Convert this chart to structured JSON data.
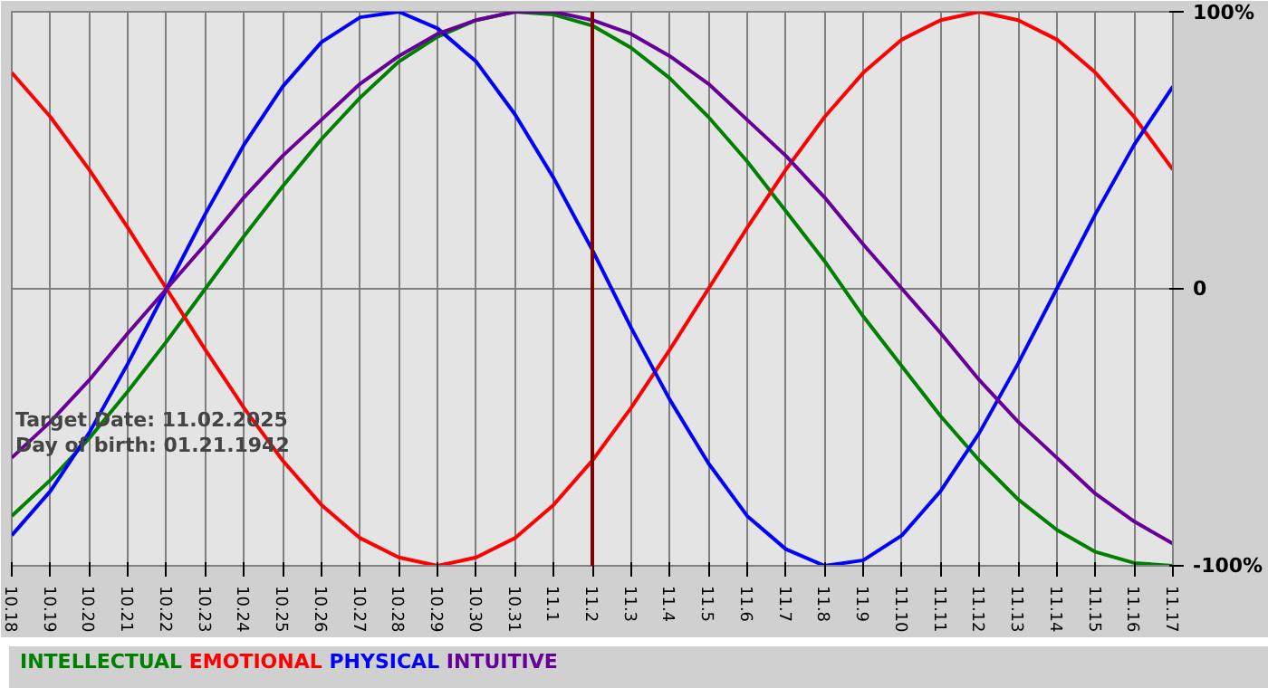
{
  "chart_data": {
    "type": "line",
    "x": [
      "2025-10-18",
      "2025-10-19",
      "2025-10-20",
      "2025-10-21",
      "2025-10-22",
      "2025-10-23",
      "2025-10-24",
      "2025-10-25",
      "2025-10-26",
      "2025-10-27",
      "2025-10-28",
      "2025-10-29",
      "2025-10-30",
      "2025-10-31",
      "2025-11-01",
      "2025-11-02",
      "2025-11-03",
      "2025-11-04",
      "2025-11-05",
      "2025-11-06",
      "2025-11-07",
      "2025-11-08",
      "2025-11-09",
      "2025-11-10",
      "2025-11-11",
      "2025-11-12",
      "2025-11-13",
      "2025-11-14",
      "2025-11-15",
      "2025-11-16",
      "2025-11-17"
    ],
    "series": [
      {
        "name": "INTELLECTUAL",
        "color": "#008000",
        "values": [
          -82,
          -69,
          -54,
          -37,
          -19,
          0,
          19,
          37,
          54,
          69,
          82,
          91,
          97,
          100,
          99,
          95,
          87,
          76,
          62,
          46,
          28,
          10,
          -10,
          -28,
          -46,
          -62,
          -76,
          -87,
          -95,
          -99,
          -100
        ]
      },
      {
        "name": "EMOTIONAL",
        "color": "#ff0000",
        "values": [
          78,
          62,
          43,
          22,
          0,
          -22,
          -43,
          -62,
          -78,
          -90,
          -97,
          -100,
          -97,
          -90,
          -78,
          -62,
          -43,
          -22,
          0,
          22,
          43,
          62,
          78,
          90,
          97,
          100,
          97,
          90,
          78,
          62,
          43
        ]
      },
      {
        "name": "PHYSICAL",
        "color": "#0000ff",
        "values": [
          -89,
          -73,
          -52,
          -27,
          0,
          27,
          52,
          73,
          89,
          98,
          100,
          94,
          82,
          63,
          40,
          14,
          -14,
          -40,
          -63,
          -82,
          -94,
          -100,
          -98,
          -89,
          -73,
          -52,
          -27,
          0,
          27,
          52,
          73
        ]
      },
      {
        "name": "INTUITIVE",
        "color": "#660099",
        "values": [
          -61,
          -48,
          -33,
          -16,
          0,
          16,
          33,
          48,
          61,
          74,
          84,
          92,
          97,
          100,
          100,
          97,
          92,
          84,
          74,
          61,
          48,
          33,
          16,
          0,
          -16,
          -33,
          -48,
          -61,
          -74,
          -84,
          -92
        ]
      }
    ],
    "xlim": [
      "2025-10-18",
      "2025-11-17"
    ],
    "xticks": [
      {
        "value": "2025-10-18",
        "label": "10.18"
      },
      {
        "value": "2025-10-19",
        "label": "10.19"
      },
      {
        "value": "2025-10-20",
        "label": "10.20"
      },
      {
        "value": "2025-10-21",
        "label": "10.21"
      },
      {
        "value": "2025-10-22",
        "label": "10.22"
      },
      {
        "value": "2025-10-23",
        "label": "10.23"
      },
      {
        "value": "2025-10-24",
        "label": "10.24"
      },
      {
        "value": "2025-10-25",
        "label": "10.25"
      },
      {
        "value": "2025-10-26",
        "label": "10.26"
      },
      {
        "value": "2025-10-27",
        "label": "10.27"
      },
      {
        "value": "2025-10-28",
        "label": "10.28"
      },
      {
        "value": "2025-10-29",
        "label": "10.29"
      },
      {
        "value": "2025-10-30",
        "label": "10.30"
      },
      {
        "value": "2025-10-31",
        "label": "10.31"
      },
      {
        "value": "2025-11-01",
        "label": "11.1"
      },
      {
        "value": "2025-11-02",
        "label": "11.2"
      },
      {
        "value": "2025-11-03",
        "label": "11.3"
      },
      {
        "value": "2025-11-04",
        "label": "11.4"
      },
      {
        "value": "2025-11-05",
        "label": "11.5"
      },
      {
        "value": "2025-11-06",
        "label": "11.6"
      },
      {
        "value": "2025-11-07",
        "label": "11.7"
      },
      {
        "value": "2025-11-08",
        "label": "11.8"
      },
      {
        "value": "2025-11-09",
        "label": "11.9"
      },
      {
        "value": "2025-11-10",
        "label": "11.10"
      },
      {
        "value": "2025-11-11",
        "label": "11.11"
      },
      {
        "value": "2025-11-12",
        "label": "11.12"
      },
      {
        "value": "2025-11-13",
        "label": "11.13"
      },
      {
        "value": "2025-11-14",
        "label": "11.14"
      },
      {
        "value": "2025-11-15",
        "label": "11.15"
      },
      {
        "value": "2025-11-16",
        "label": "11.16"
      },
      {
        "value": "2025-11-17",
        "label": "11.17"
      }
    ],
    "ylim": [
      -100,
      100
    ],
    "yticks": [
      {
        "value": 100,
        "label": "100%"
      },
      {
        "value": 0,
        "label": "0"
      },
      {
        "value": -100,
        "label": "-100%"
      }
    ],
    "ref_lines": [
      {
        "axis": "x",
        "value": "2025-11-02",
        "color": "#800000"
      }
    ],
    "annotations": [
      "Target Date: 11.02.2025",
      "Day of birth: 01.21.1942"
    ],
    "grid": true,
    "legend": "bottom",
    "marker": "none",
    "line_style": "solid"
  }
}
